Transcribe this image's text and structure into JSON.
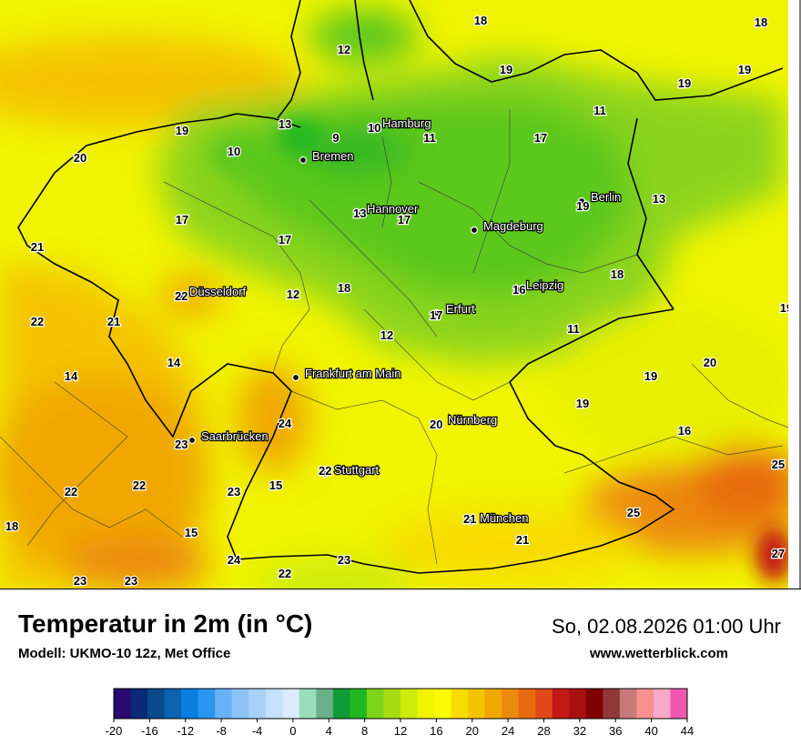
{
  "header": {
    "title": "Temperatur in 2m (in °C)",
    "model": "Modell: UKMO-10 12z, Met Office",
    "datetime": "So, 02.08.2026 01:00 Uhr",
    "website": "www.wetterblick.com"
  },
  "cities": [
    {
      "name": "Hamburg",
      "temp": "10"
    },
    {
      "name": "Bremen",
      "temp": ""
    },
    {
      "name": "Hannover",
      "temp": "13"
    },
    {
      "name": "Berlin",
      "temp": "19"
    },
    {
      "name": "Magdeburg",
      "temp": ""
    },
    {
      "name": "Düsseldorf",
      "temp": "22"
    },
    {
      "name": "Leipzig",
      "temp": "16"
    },
    {
      "name": "Erfurt",
      "temp": "17"
    },
    {
      "name": "Frankfurt am Main",
      "temp": ""
    },
    {
      "name": "Nürnberg",
      "temp": "20"
    },
    {
      "name": "Saarbrücken",
      "temp": "23"
    },
    {
      "name": "Stuttgart",
      "temp": "22"
    },
    {
      "name": "München",
      "temp": "21"
    }
  ],
  "temperature_labels": [
    "18",
    "12",
    "18",
    "19",
    "19",
    "19",
    "11",
    "17",
    "11",
    "9",
    "19",
    "13",
    "20",
    "10",
    "17",
    "17",
    "21",
    "13",
    "18",
    "12",
    "17",
    "18",
    "19",
    "22",
    "21",
    "12",
    "11",
    "14",
    "14",
    "19",
    "20",
    "19",
    "16",
    "24",
    "15",
    "23",
    "22",
    "22",
    "25",
    "25",
    "18",
    "15",
    "24",
    "23",
    "22",
    "23",
    "23",
    "21",
    "27"
  ],
  "legend": {
    "ticks": [
      "-20",
      "-16",
      "-12",
      "-8",
      "-4",
      "0",
      "4",
      "8",
      "12",
      "16",
      "20",
      "24",
      "28",
      "32",
      "36",
      "40",
      "44"
    ],
    "colors": [
      "#2a0a6e",
      "#0a2a78",
      "#0a4a8a",
      "#0a62b0",
      "#0a7ee0",
      "#2a96f0",
      "#6ab2f8",
      "#8cc4f8",
      "#a8d2f8",
      "#c4e0fa",
      "#d8ecfc",
      "#98dcb8",
      "#68b088",
      "#109a38",
      "#20b820",
      "#7ed41a",
      "#a8dc12",
      "#ccec0c",
      "#f0f400",
      "#fafa00",
      "#f8dc00",
      "#f4c400",
      "#f0a800",
      "#ec8a10",
      "#e86a10",
      "#e04818",
      "#c41818",
      "#a81010",
      "#800000",
      "#903838",
      "#c87878",
      "#f89090",
      "#f8a8c8",
      "#f058b0"
    ]
  }
}
